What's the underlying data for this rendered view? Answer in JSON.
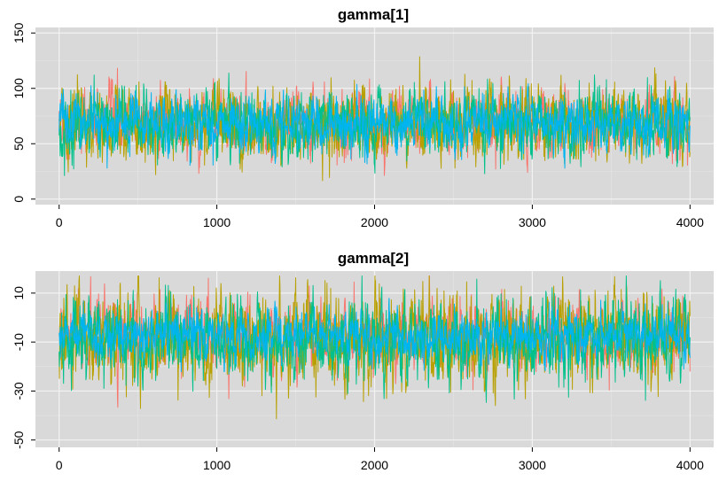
{
  "chart_data": [
    {
      "type": "line",
      "title": "gamma[1]",
      "xlabel": "",
      "ylabel": "",
      "xlim": [
        -150,
        4150
      ],
      "ylim": [
        -5,
        155
      ],
      "x_ticks": [
        0,
        1000,
        2000,
        3000,
        4000
      ],
      "x_tick_labels": [
        "0",
        "1000",
        "2000",
        "3000",
        "4000"
      ],
      "y_ticks": [
        0,
        50,
        100,
        150
      ],
      "y_tick_labels": [
        "0",
        "50",
        "100",
        "150"
      ],
      "grid": true,
      "n_iterations": 4000,
      "series": [
        {
          "color": "#f8766d",
          "center": 68,
          "spread": 14
        },
        {
          "color": "#b8a000",
          "center": 67,
          "spread": 16
        },
        {
          "color": "#00c08b",
          "center": 67,
          "spread": 15
        },
        {
          "color": "#00b4f0",
          "center": 69,
          "spread": 12
        }
      ]
    },
    {
      "type": "line",
      "title": "gamma[2]",
      "xlabel": "",
      "ylabel": "",
      "xlim": [
        -150,
        4150
      ],
      "ylim": [
        -53,
        19
      ],
      "x_ticks": [
        0,
        1000,
        2000,
        3000,
        4000
      ],
      "x_tick_labels": [
        "0",
        "1000",
        "2000",
        "3000",
        "4000"
      ],
      "y_ticks": [
        10,
        -10,
        -30,
        -50
      ],
      "y_tick_labels": [
        "10",
        "-10",
        "-30",
        "-50"
      ],
      "grid": true,
      "n_iterations": 4000,
      "series": [
        {
          "color": "#f8766d",
          "center": -8,
          "spread": 7
        },
        {
          "color": "#b8a000",
          "center": -9,
          "spread": 9
        },
        {
          "color": "#00c08b",
          "center": -9,
          "spread": 8
        },
        {
          "color": "#00b4f0",
          "center": -7,
          "spread": 5
        }
      ]
    }
  ]
}
